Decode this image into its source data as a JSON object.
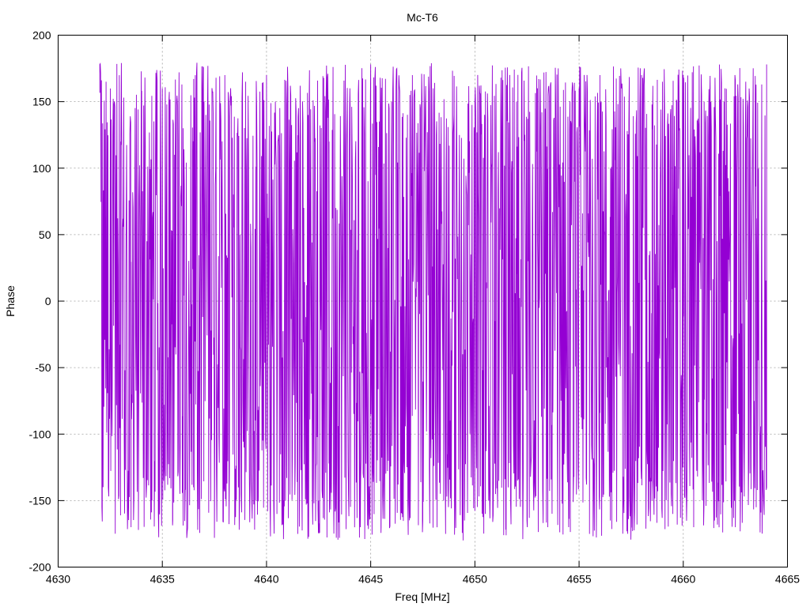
{
  "chart_data": {
    "type": "line",
    "title": "Mc-T6",
    "xlabel": "Freq [MHz]",
    "ylabel": "Phase",
    "xlim": [
      4630,
      4665
    ],
    "ylim": [
      -200,
      200
    ],
    "xticks": [
      4630,
      4635,
      4640,
      4645,
      4650,
      4655,
      4660,
      4665
    ],
    "yticks": [
      -200,
      -150,
      -100,
      -50,
      0,
      50,
      100,
      150,
      200
    ],
    "grid": true,
    "series": [
      {
        "color": "#9400d3",
        "x_start": 4632.0,
        "x_end": 4664.0,
        "x_step": 0.0195,
        "description_values": "noisy phase wrapped between -180 and 180",
        "sample_x": [
          4632.0,
          4632.1,
          4632.3,
          4632.6,
          4633.0,
          4633.5,
          4634.0,
          4634.5,
          4635.0,
          4635.5,
          4636.0,
          4636.5,
          4637.0,
          4637.5,
          4638.0,
          4638.5,
          4639.0,
          4639.5,
          4640.0,
          4640.5,
          4641.0,
          4641.5,
          4642.0,
          4642.5,
          4643.0,
          4643.5,
          4644.0,
          4644.5,
          4645.0,
          4645.5,
          4646.0,
          4646.5,
          4647.0,
          4647.5,
          4648.0,
          4648.5,
          4649.0,
          4649.5,
          4650.0,
          4650.5,
          4651.0,
          4651.5,
          4652.0,
          4652.5,
          4653.0,
          4653.5,
          4654.0,
          4654.5,
          4655.0,
          4655.5,
          4656.0,
          4656.5,
          4657.0,
          4657.5,
          4658.0,
          4658.5,
          4659.0,
          4659.5,
          4660.0,
          4660.5,
          4661.0,
          4661.5,
          4662.0,
          4662.5,
          4663.0,
          4663.5,
          4664.0
        ],
        "sample_y": [
          178,
          -155,
          165,
          -60,
          120,
          -170,
          140,
          -150,
          160,
          -165,
          130,
          -140,
          150,
          -178,
          170,
          -160,
          165,
          -150,
          170,
          -160,
          150,
          -175,
          140,
          -150,
          120,
          -178,
          160,
          -170,
          178,
          -170,
          150,
          -160,
          170,
          -165,
          160,
          -150,
          140,
          -165,
          150,
          -160,
          130,
          -155,
          150,
          -165,
          160,
          -170,
          175,
          -170,
          160,
          -175,
          170,
          -165,
          175,
          -160,
          170,
          -150,
          165,
          -160,
          170,
          -170,
          150,
          -165,
          160,
          -170,
          165,
          -155,
          178
        ]
      }
    ]
  }
}
